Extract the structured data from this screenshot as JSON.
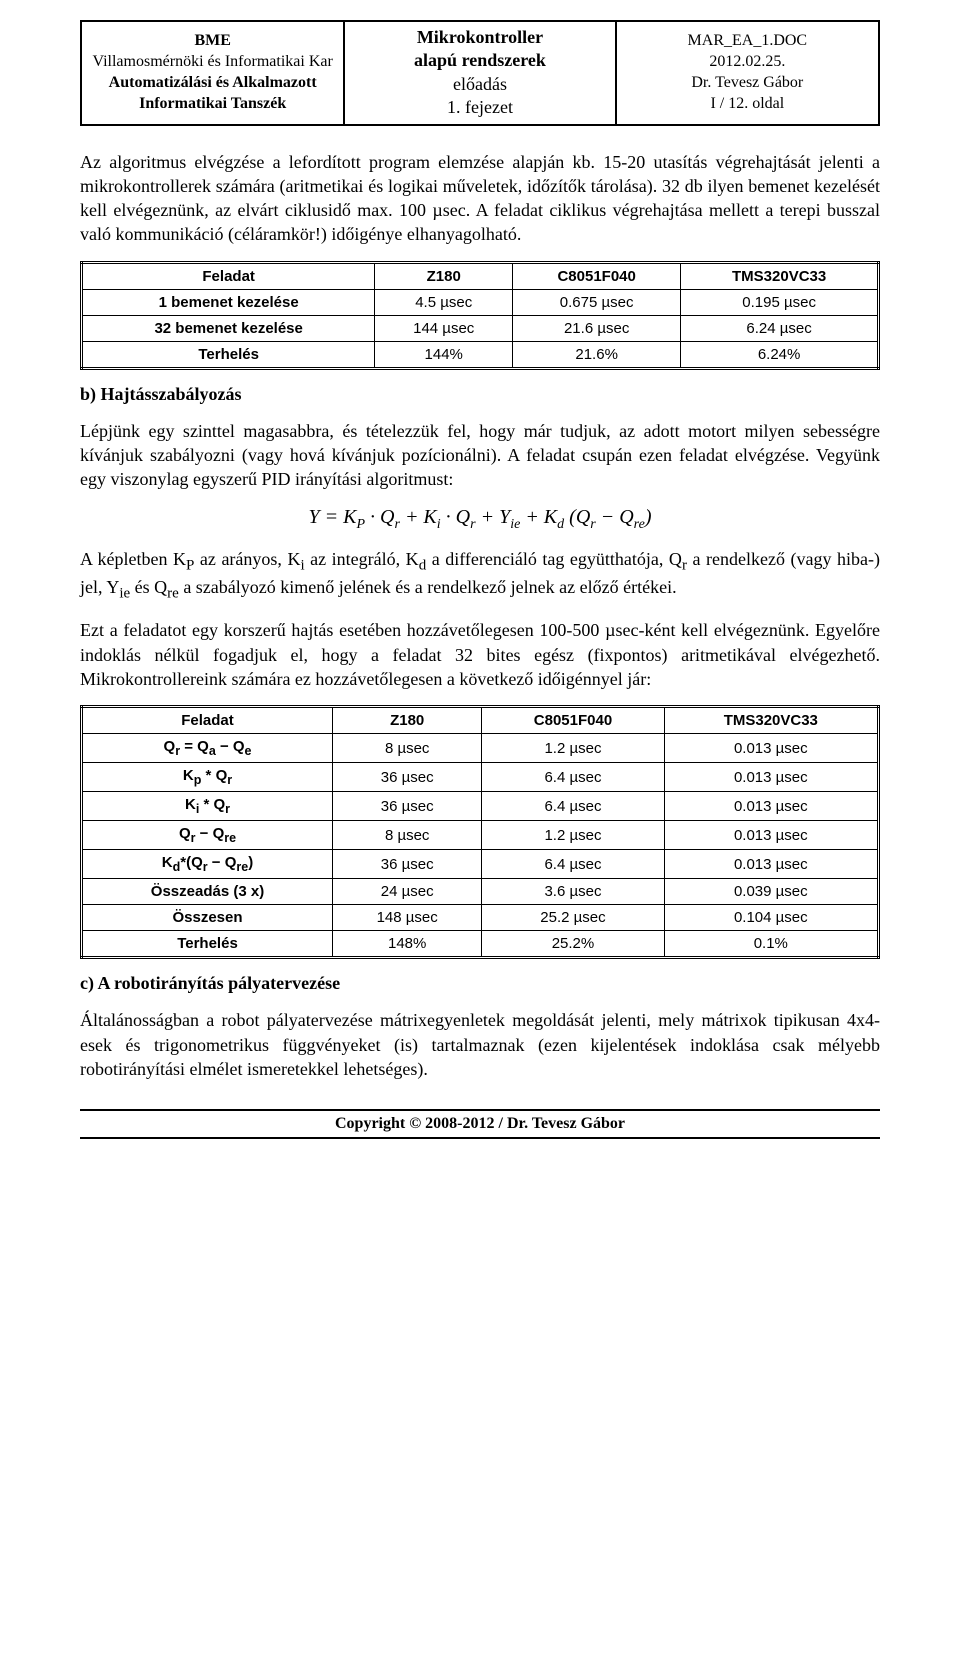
{
  "header": {
    "left_line1": "BME",
    "left_line2": "Villamosmérnöki és Informatikai Kar",
    "left_line3": "Automatizálási és Alkalmazott",
    "left_line4": "Informatikai Tanszék",
    "center_line1": "Mikrokontroller",
    "center_line2": "alapú rendszerek",
    "center_line3": "előadás",
    "center_line4": "1. fejezet",
    "right_line1": "MAR_EA_1.DOC",
    "right_line2": "2012.02.25.",
    "right_line3": "Dr. Tevesz Gábor",
    "right_line4": "I / 12. oldal"
  },
  "para1": "Az algoritmus elvégzése a lefordított program elemzése alapján kb. 15-20 utasítás végrehajtását jelenti a mikrokontrollerek számára (aritmetikai és logikai műveletek, időzítők tárolása). 32 db ilyen bemenet kezelését kell elvégeznünk, az elvárt ciklusidő max. 100 µsec. A feladat ciklikus végrehajtása mellett a terepi busszal való kommunikáció (céláramkör!) időigénye elhanyagolható.",
  "table1": {
    "headers": [
      "Feladat",
      "Z180",
      "C8051F040",
      "TMS320VC33"
    ],
    "rows": [
      [
        "1 bemenet kezelése",
        "4.5 µsec",
        "0.675 µsec",
        "0.195 µsec"
      ],
      [
        "32 bemenet kezelése",
        "144 µsec",
        "21.6 µsec",
        "6.24 µsec"
      ],
      [
        "Terhelés",
        "144%",
        "21.6%",
        "6.24%"
      ]
    ]
  },
  "section_b_title": "b) Hajtásszabályozás",
  "para2": "Lépjünk egy szinttel magasabbra, és tételezzük fel, hogy már tudjuk, az adott motort milyen sebességre kívánjuk szabályozni (vagy hová kívánjuk pozícionálni). A feladat csupán ezen feladat elvégzése. Vegyünk egy viszonylag egyszerű PID irányítási algoritmust:",
  "formula": "Y = K_P · Q_r + K_i · Q_r + Y_ie + K_d (Q_r − Q_re)",
  "para3": "A képletben K_P az arányos, K_i az integráló, K_d a differenciáló tag együtthatója, Q_r a rendelkező (vagy hiba-) jel, Y_ie és Q_re a szabályozó kimenő jelének és a rendelkező jelnek az előző értékei.",
  "para4": "Ezt a feladatot egy korszerű hajtás esetében hozzávetőlegesen 100-500 µsec-ként kell elvégeznünk. Egyelőre indoklás nélkül fogadjuk el, hogy a feladat 32 bites egész (fixpontos) aritmetikával elvégezhető. Mikrokontrollereink számára ez hozzávetőlegesen a következő időigénnyel jár:",
  "table2": {
    "headers": [
      "Feladat",
      "Z180",
      "C8051F040",
      "TMS320VC33"
    ],
    "rows": [
      {
        "label_html": "Q<sub>r</sub> = Q<sub>a</sub> − Q<sub>e</sub>",
        "c1": "8 µsec",
        "c2": "1.2 µsec",
        "c3": "0.013 µsec"
      },
      {
        "label_html": "K<sub>p</sub> * Q<sub>r</sub>",
        "c1": "36 µsec",
        "c2": "6.4 µsec",
        "c3": "0.013 µsec"
      },
      {
        "label_html": "K<sub>i</sub> * Q<sub>r</sub>",
        "c1": "36 µsec",
        "c2": "6.4 µsec",
        "c3": "0.013 µsec"
      },
      {
        "label_html": "Q<sub>r</sub> − Q<sub>re</sub>",
        "c1": "8 µsec",
        "c2": "1.2 µsec",
        "c3": "0.013 µsec"
      },
      {
        "label_html": "K<sub>d</sub>*(Q<sub>r</sub> − Q<sub>re</sub>)",
        "c1": "36 µsec",
        "c2": "6.4 µsec",
        "c3": "0.013 µsec"
      },
      {
        "label_html": "Összeadás (3 x)",
        "c1": "24 µsec",
        "c2": "3.6 µsec",
        "c3": "0.039 µsec"
      },
      {
        "label_html": "Összesen",
        "c1": "148 µsec",
        "c2": "25.2 µsec",
        "c3": "0.104 µsec"
      },
      {
        "label_html": "Terhelés",
        "c1": "148%",
        "c2": "25.2%",
        "c3": "0.1%"
      }
    ]
  },
  "section_c_title": "c) A robotirányítás pályatervezése",
  "para5": "Általánosságban a robot pályatervezése mátrixegyenletek megoldását jelenti, mely mátrixok tipikusan 4x4-esek és trigonometrikus függvényeket (is) tartalmaznak (ezen kijelentések indoklása csak mélyebb robotirányítási elmélet ismeretekkel lehetséges).",
  "copyright": "Copyright © 2008-2012 / Dr. Tevesz Gábor"
}
